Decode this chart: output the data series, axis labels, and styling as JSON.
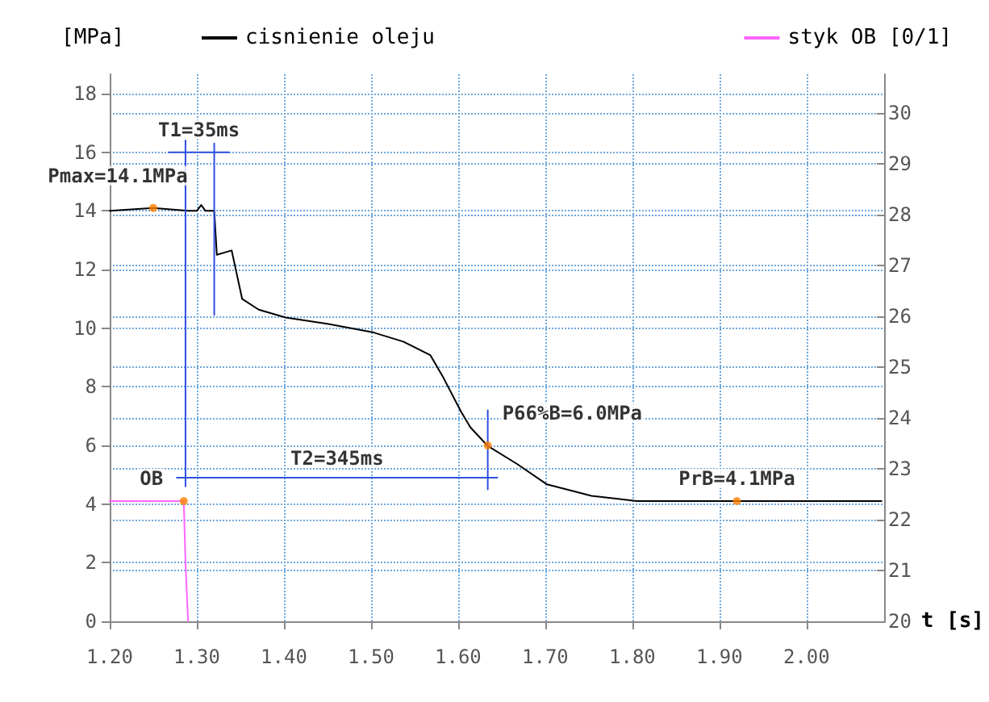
{
  "chart_data": {
    "type": "line",
    "ylabel": "[MPa]",
    "xlabel": "t [s]",
    "xlim": [
      1.2,
      2.09
    ],
    "xticks": [
      {
        "value": 1.2,
        "label": "1.20"
      },
      {
        "value": 1.3,
        "label": "1.30"
      },
      {
        "value": 1.4,
        "label": "1.40"
      },
      {
        "value": 1.5,
        "label": "1.50"
      },
      {
        "value": 1.6,
        "label": "1.60"
      },
      {
        "value": 1.7,
        "label": "1.70"
      },
      {
        "value": 1.8,
        "label": "1.80"
      },
      {
        "value": 1.9,
        "label": "1.90"
      },
      {
        "value": 2.0,
        "label": "2.00"
      }
    ],
    "ylim": [
      0,
      18.66
    ],
    "yticks": [
      0,
      2,
      4,
      6,
      8,
      10,
      12,
      14,
      16,
      18
    ],
    "y2lim": [
      20,
      30.76
    ],
    "y2ticks": [
      20,
      21,
      22,
      23,
      24,
      25,
      26,
      27,
      28,
      29,
      30
    ],
    "grid": true,
    "legend": "top",
    "marker": "none",
    "line_style": "solid",
    "series": [
      {
        "name": "cisnienie oleju",
        "color": "#000000",
        "x": [
          1.2,
          1.25,
          1.29,
          1.3,
          1.305,
          1.31,
          1.32,
          1.323,
          1.34,
          1.352,
          1.371,
          1.402,
          1.451,
          1.503,
          1.537,
          1.568,
          1.582,
          1.603,
          1.614,
          1.634,
          1.668,
          1.702,
          1.753,
          1.805,
          1.9,
          2.0,
          2.086
        ],
        "values": [
          14.0,
          14.1,
          14.0,
          14.0,
          14.2,
          14.0,
          14.0,
          12.5,
          12.65,
          11.0,
          10.63,
          10.36,
          10.14,
          9.85,
          9.54,
          9.08,
          8.37,
          7.17,
          6.62,
          5.98,
          5.36,
          4.67,
          4.28,
          4.1,
          4.1,
          4.1,
          4.1
        ]
      },
      {
        "name": "styk OB [0/1]",
        "color": "#ff66ff",
        "x": [
          1.2,
          1.25,
          1.285,
          1.287,
          1.29
        ],
        "values": [
          4.1,
          4.1,
          4.1,
          2.0,
          0
        ]
      },
      {
        "type": "line",
        "color": "#3050e0",
        "x": [
          1.287,
          1.287,
          null,
          1.32,
          1.32,
          null,
          1.268,
          1.337,
          null,
          1.277,
          1.645,
          null,
          1.634,
          1.634
        ],
        "values": [
          16.4,
          4.6,
          null,
          16.3,
          10.45,
          null,
          16.0,
          16.0,
          null,
          4.9,
          4.9,
          null,
          7.2,
          4.5
        ]
      },
      {
        "type": "scatter",
        "marker": "circle",
        "color": "#ff8000",
        "x": [
          1.25,
          1.285,
          1.634,
          1.92
        ],
        "values": [
          14.1,
          4.1,
          6.0,
          4.1
        ]
      }
    ],
    "annotations": [
      {
        "text": "Pmax=14.1MPa",
        "x": 1.25,
        "y": 14.1
      },
      {
        "text": "T1=35ms",
        "x": 1.3025,
        "y": 16.0
      },
      {
        "text": "OB",
        "x": 1.285,
        "y": 4.1
      },
      {
        "text": "T2=345ms",
        "x": 1.461,
        "y": 4.9
      },
      {
        "text": "P66%B=6.0MPa",
        "x": 1.634,
        "y": 6.0
      },
      {
        "text": "PrB=4.1MPa",
        "x": 1.92,
        "y": 4.1
      }
    ]
  }
}
